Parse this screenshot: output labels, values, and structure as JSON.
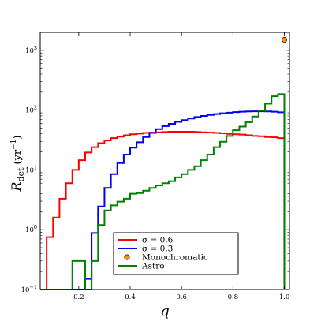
{
  "chart_data": {
    "type": "line",
    "title": "",
    "xlabel": "q",
    "ylabel_main": "R",
    "ylabel_sub": "det",
    "ylabel_unit": "(yr",
    "ylabel_unit_exp": "−1",
    "ylabel_unit_close": ")",
    "xlim": [
      0.05,
      1.02
    ],
    "ylim": [
      0.1,
      2000
    ],
    "yscale": "log",
    "grid": false,
    "legend_position": "lower-center",
    "x_ticks": [
      {
        "value": 0.2,
        "label": "0.2"
      },
      {
        "value": 0.4,
        "label": "0.4"
      },
      {
        "value": 0.6,
        "label": "0.6"
      },
      {
        "value": 0.8,
        "label": "0.8"
      },
      {
        "value": 1.0,
        "label": "1.0"
      }
    ],
    "y_ticks": [
      {
        "value": 0.1,
        "base": "10",
        "exp": "−1"
      },
      {
        "value": 1,
        "base": "10",
        "exp": "0"
      },
      {
        "value": 10,
        "base": "10",
        "exp": "1"
      },
      {
        "value": 100,
        "base": "10",
        "exp": "2"
      },
      {
        "value": 1000,
        "base": "10",
        "exp": "3"
      }
    ],
    "series": [
      {
        "name": "σ = 0.6",
        "color": "#ff0000",
        "style": "step",
        "edges": [
          0.05,
          0.075,
          0.1,
          0.125,
          0.15,
          0.175,
          0.2,
          0.225,
          0.25,
          0.275,
          0.3,
          0.325,
          0.35,
          0.375,
          0.4,
          0.425,
          0.45,
          0.475,
          0.5,
          0.525,
          0.55,
          0.575,
          0.6,
          0.625,
          0.65,
          0.675,
          0.7,
          0.725,
          0.75,
          0.775,
          0.8,
          0.825,
          0.85,
          0.875,
          0.9,
          0.925,
          0.95,
          0.975,
          1.0
        ],
        "values": [
          0.1,
          0.75,
          1.6,
          3.3,
          6.0,
          10.0,
          14.5,
          19.5,
          24.0,
          28.0,
          31.0,
          34.0,
          36.0,
          38.0,
          39.5,
          40.5,
          41.5,
          42.0,
          42.5,
          43.0,
          43.5,
          43.5,
          43.5,
          43.5,
          43.0,
          42.5,
          42.0,
          41.5,
          41.0,
          40.0,
          39.5,
          39.0,
          38.0,
          37.0,
          36.5,
          35.5,
          35.0,
          34.0
        ],
        "end_value": 0.1
      },
      {
        "name": "σ = 0.3",
        "color": "#0000ee",
        "style": "step",
        "edges": [
          0.05,
          0.075,
          0.1,
          0.125,
          0.15,
          0.175,
          0.2,
          0.225,
          0.25,
          0.275,
          0.3,
          0.325,
          0.35,
          0.375,
          0.4,
          0.425,
          0.45,
          0.475,
          0.5,
          0.525,
          0.55,
          0.575,
          0.6,
          0.625,
          0.65,
          0.675,
          0.7,
          0.725,
          0.75,
          0.775,
          0.8,
          0.825,
          0.85,
          0.875,
          0.9,
          0.925,
          0.95,
          0.975,
          1.0
        ],
        "values": [
          0.1,
          0.1,
          0.1,
          0.1,
          0.1,
          0.1,
          0.1,
          0.15,
          0.88,
          2.45,
          5.0,
          8.5,
          13.0,
          18.0,
          23.5,
          29.0,
          35.5,
          41.5,
          48.0,
          54.0,
          59.0,
          63.5,
          68.0,
          72.5,
          76.5,
          80.0,
          83.0,
          86.0,
          88.5,
          90.5,
          92.5,
          94.0,
          95.0,
          95.5,
          95.5,
          95.0,
          94.0,
          92.0
        ],
        "end_value": 0.1
      },
      {
        "name": "Astro",
        "color": "#008000",
        "style": "step",
        "edges": [
          0.05,
          0.075,
          0.1,
          0.125,
          0.15,
          0.175,
          0.2,
          0.225,
          0.25,
          0.275,
          0.3,
          0.325,
          0.35,
          0.375,
          0.4,
          0.425,
          0.45,
          0.475,
          0.5,
          0.525,
          0.55,
          0.575,
          0.6,
          0.625,
          0.65,
          0.675,
          0.7,
          0.725,
          0.75,
          0.775,
          0.8,
          0.825,
          0.85,
          0.875,
          0.9,
          0.925,
          0.95,
          0.975,
          1.0
        ],
        "values": [
          0.1,
          0.1,
          0.1,
          0.1,
          0.1,
          0.3,
          0.3,
          0.1,
          0.3,
          1.2,
          2.1,
          2.55,
          2.95,
          3.3,
          4.0,
          4.1,
          4.5,
          5.0,
          5.5,
          6.0,
          6.5,
          7.5,
          8.5,
          10.0,
          11.5,
          14.5,
          18.0,
          24.0,
          29.5,
          37.0,
          46.0,
          53.0,
          63.0,
          78.0,
          99.0,
          128.0,
          170.0,
          185.0
        ],
        "end_value": 0.1
      }
    ],
    "points": [
      {
        "name": "Monochromatic",
        "color": "#ff8c00",
        "x": 1.0,
        "y": 1500
      }
    ],
    "legend": [
      {
        "label": "σ = 0.6",
        "kind": "line",
        "color": "#ff0000"
      },
      {
        "label": "σ = 0.3",
        "kind": "line",
        "color": "#0000ee"
      },
      {
        "label": "Monochromatic",
        "kind": "marker",
        "color": "#ff8c00"
      },
      {
        "label": "Astro",
        "kind": "line",
        "color": "#008000"
      }
    ]
  }
}
